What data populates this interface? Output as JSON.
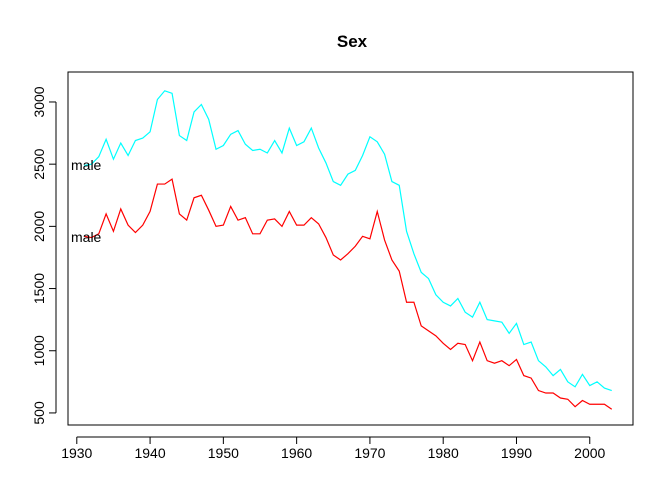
{
  "chart_data": {
    "type": "line",
    "title": "Sex",
    "x": [
      1931,
      1932,
      1933,
      1934,
      1935,
      1936,
      1937,
      1938,
      1939,
      1940,
      1941,
      1942,
      1943,
      1944,
      1945,
      1946,
      1947,
      1948,
      1949,
      1950,
      1951,
      1952,
      1953,
      1954,
      1955,
      1956,
      1957,
      1958,
      1959,
      1960,
      1961,
      1962,
      1963,
      1964,
      1965,
      1966,
      1967,
      1968,
      1969,
      1970,
      1971,
      1972,
      1973,
      1974,
      1975,
      1976,
      1977,
      1978,
      1979,
      1980,
      1981,
      1982,
      1983,
      1984,
      1985,
      1986,
      1987,
      1988,
      1989,
      1990,
      1991,
      1992,
      1993,
      1994,
      1995,
      1996,
      1997,
      1998,
      1999,
      2000,
      2001,
      2002,
      2003
    ],
    "series": [
      {
        "color": "#00ffff",
        "values": [
          2490,
          2500,
          2560,
          2700,
          2540,
          2670,
          2570,
          2690,
          2710,
          2760,
          3020,
          3090,
          3070,
          2730,
          2690,
          2920,
          2980,
          2860,
          2620,
          2650,
          2740,
          2770,
          2660,
          2610,
          2620,
          2590,
          2690,
          2590,
          2790,
          2650,
          2680,
          2790,
          2630,
          2510,
          2360,
          2330,
          2420,
          2450,
          2570,
          2720,
          2680,
          2580,
          2360,
          2330,
          1960,
          1780,
          1630,
          1580,
          1450,
          1390,
          1360,
          1420,
          1310,
          1270,
          1390,
          1250,
          1240,
          1230,
          1140,
          1220,
          1050,
          1070,
          920,
          870,
          800,
          850,
          750,
          710,
          810,
          720,
          750,
          700,
          680
        ]
      },
      {
        "color": "#ff0000",
        "values": [
          1920,
          1910,
          1940,
          2100,
          1960,
          2140,
          2010,
          1950,
          2010,
          2120,
          2340,
          2340,
          2380,
          2100,
          2050,
          2230,
          2250,
          2130,
          2000,
          2010,
          2160,
          2050,
          2070,
          1940,
          1940,
          2050,
          2060,
          2000,
          2120,
          2010,
          2010,
          2070,
          2020,
          1910,
          1770,
          1730,
          1780,
          1840,
          1920,
          1900,
          2120,
          1890,
          1730,
          1640,
          1390,
          1390,
          1200,
          1160,
          1120,
          1060,
          1010,
          1060,
          1050,
          920,
          1070,
          920,
          900,
          920,
          880,
          930,
          800,
          780,
          680,
          660,
          660,
          620,
          610,
          550,
          600,
          570,
          570,
          570,
          530
        ]
      }
    ],
    "annotations": [
      "male",
      "male"
    ],
    "xlim": [
      1928.8,
      2005.9
    ],
    "xticks": [
      1930,
      1940,
      1950,
      1960,
      1970,
      1980,
      1990,
      2000
    ],
    "ylim": [
      403,
      3241
    ],
    "yticks": [
      500,
      1000,
      1500,
      2000,
      2500,
      3000
    ]
  }
}
